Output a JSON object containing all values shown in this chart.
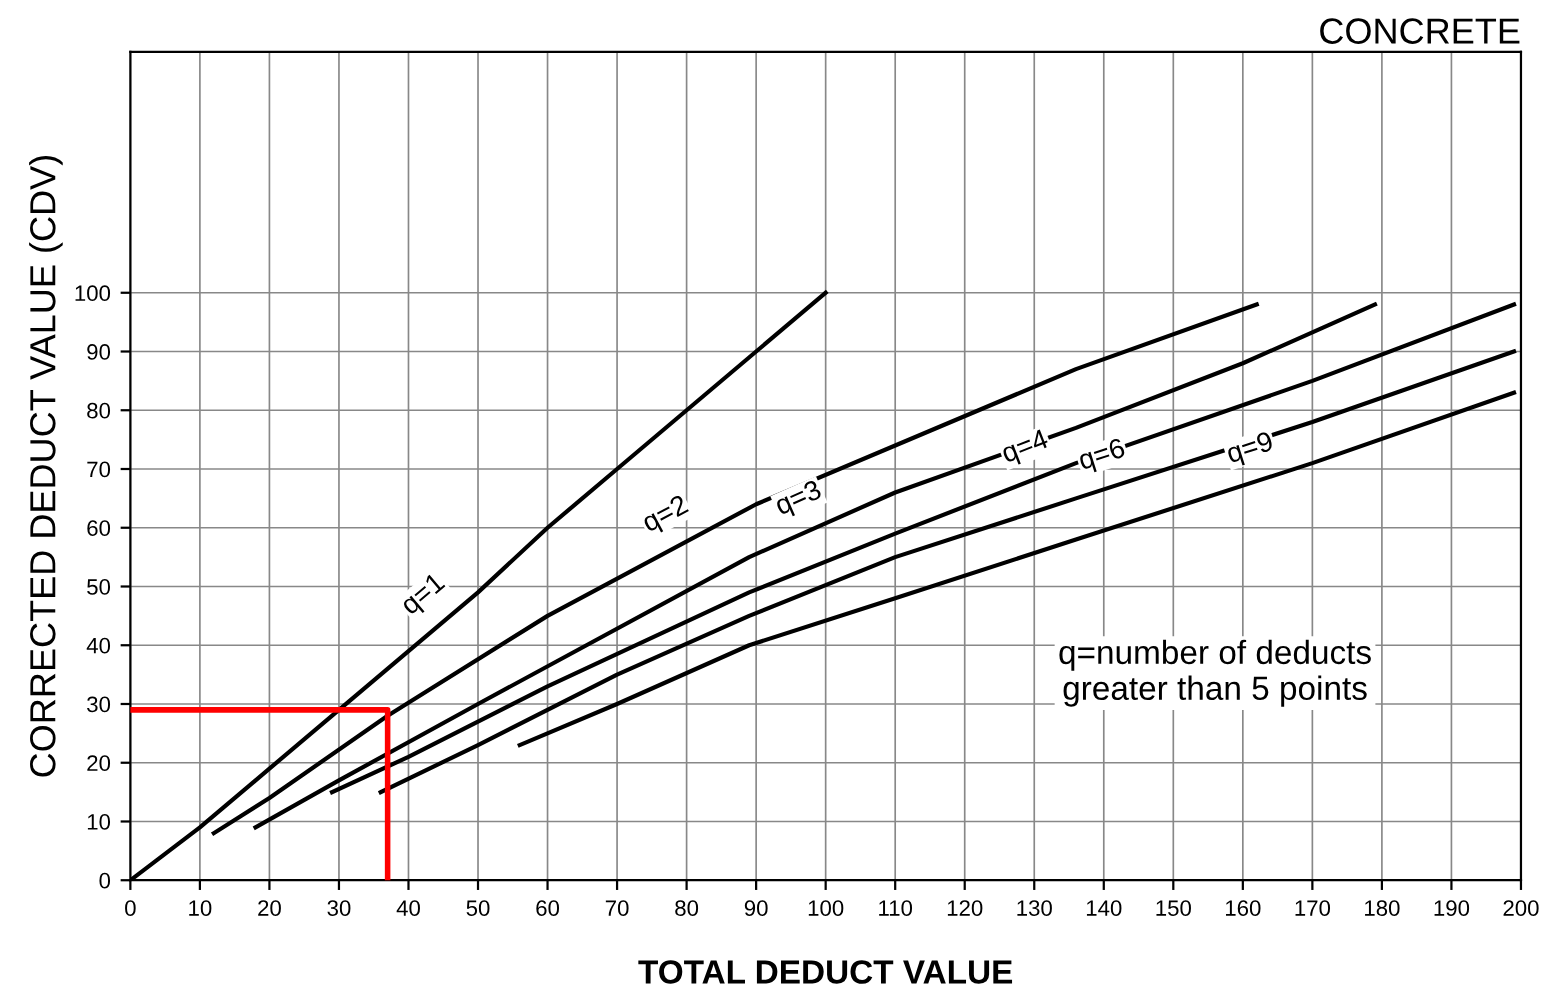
{
  "chart_data": {
    "type": "line",
    "title": "CONCRETE",
    "xlabel": "TOTAL DEDUCT VALUE",
    "ylabel": "CORRECTED DEDUCT VALUE (CDV)",
    "xlim": [
      0,
      200
    ],
    "ylim": [
      0,
      141
    ],
    "xticks": [
      0,
      10,
      20,
      30,
      40,
      50,
      60,
      70,
      80,
      90,
      100,
      110,
      120,
      130,
      140,
      150,
      160,
      170,
      180,
      190,
      200
    ],
    "yticks": [
      0,
      10,
      20,
      30,
      40,
      50,
      60,
      70,
      80,
      90,
      100
    ],
    "grid": true,
    "marker": "none",
    "line_style": "solid",
    "series": [
      {
        "name": "q=1",
        "color": "#000000",
        "x": [
          0,
          10,
          20,
          30,
          40,
          50,
          60,
          70,
          80,
          90,
          100
        ],
        "values": [
          0,
          9,
          19,
          29,
          39,
          49,
          60,
          70,
          80,
          90,
          100
        ]
      },
      {
        "name": "q=2",
        "color": "#000000",
        "x": [
          12,
          20,
          37,
          60,
          90,
          110,
          136,
          162
        ],
        "values": [
          8,
          14,
          28,
          45,
          64,
          74,
          87,
          98
        ]
      },
      {
        "name": "q=3",
        "color": "#000000",
        "x": [
          18,
          30,
          50,
          89,
          110,
          136,
          160,
          179
        ],
        "values": [
          9,
          17,
          30,
          55,
          66,
          77,
          88,
          98
        ]
      },
      {
        "name": "q=4",
        "color": "#000000",
        "x": [
          29,
          40,
          60,
          89,
          110,
          136,
          170,
          199
        ],
        "values": [
          15,
          21,
          33,
          49,
          59,
          71,
          85,
          98
        ]
      },
      {
        "name": "q=6",
        "color": "#000000",
        "x": [
          36,
          50,
          70,
          89,
          110,
          136,
          170,
          199
        ],
        "values": [
          15,
          23,
          35,
          45,
          55,
          65,
          78,
          90
        ]
      },
      {
        "name": "q=9",
        "color": "#000000",
        "x": [
          56,
          70,
          89,
          110,
          136,
          170,
          199
        ],
        "values": [
          23,
          30,
          40,
          48,
          58,
          71,
          83
        ]
      },
      {
        "color": "#ff0000",
        "x": [
          0,
          37,
          37
        ],
        "values": [
          29,
          29,
          0
        ]
      }
    ],
    "annotations": [
      "q=number of deducts\ngreater than 5 points"
    ]
  }
}
